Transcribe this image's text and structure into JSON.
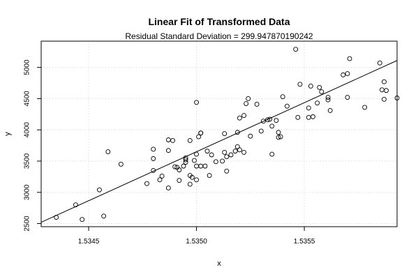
{
  "chart_data": {
    "type": "scatter",
    "title": "Linear Fit of Transformed Data",
    "subtitle": "Residual Standard Deviation =  299.947870190242",
    "xlabel": "x",
    "ylabel": "y",
    "xlim": [
      1.53428,
      1.53593
    ],
    "ylim": [
      2450,
      5420
    ],
    "grid": true,
    "xticks": [
      1.5345,
      1.535,
      1.5355
    ],
    "xtick_labels": [
      "1.5345",
      "1.5350",
      "1.5355"
    ],
    "yticks": [
      2500,
      3000,
      3500,
      4000,
      4500,
      5000
    ],
    "ytick_labels": [
      "2500",
      "3000",
      "3500",
      "4000",
      "4500",
      "5000"
    ],
    "fit_line": {
      "x": [
        1.53428,
        1.53593
      ],
      "y": [
        2520,
        5110
      ]
    },
    "points": [
      {
        "x": 1.53435,
        "y": 2600
      },
      {
        "x": 1.53444,
        "y": 2800
      },
      {
        "x": 1.53447,
        "y": 2565
      },
      {
        "x": 1.53455,
        "y": 3040
      },
      {
        "x": 1.53457,
        "y": 2620
      },
      {
        "x": 1.53459,
        "y": 3650
      },
      {
        "x": 1.53465,
        "y": 3450
      },
      {
        "x": 1.53477,
        "y": 3140
      },
      {
        "x": 1.5348,
        "y": 3350
      },
      {
        "x": 1.5348,
        "y": 3540
      },
      {
        "x": 1.5348,
        "y": 3690
      },
      {
        "x": 1.53483,
        "y": 3200
      },
      {
        "x": 1.53484,
        "y": 3260
      },
      {
        "x": 1.53487,
        "y": 3840
      },
      {
        "x": 1.53487,
        "y": 3670
      },
      {
        "x": 1.53487,
        "y": 3070
      },
      {
        "x": 1.53489,
        "y": 3830
      },
      {
        "x": 1.5349,
        "y": 3410
      },
      {
        "x": 1.53491,
        "y": 3400
      },
      {
        "x": 1.53492,
        "y": 3190
      },
      {
        "x": 1.53492,
        "y": 3360
      },
      {
        "x": 1.53494,
        "y": 3420
      },
      {
        "x": 1.53495,
        "y": 3480
      },
      {
        "x": 1.53495,
        "y": 3520
      },
      {
        "x": 1.53495,
        "y": 3550
      },
      {
        "x": 1.53497,
        "y": 3130
      },
      {
        "x": 1.53497,
        "y": 3830
      },
      {
        "x": 1.53497,
        "y": 3270
      },
      {
        "x": 1.53498,
        "y": 3240
      },
      {
        "x": 1.53499,
        "y": 3510
      },
      {
        "x": 1.535,
        "y": 4440
      },
      {
        "x": 1.535,
        "y": 3610
      },
      {
        "x": 1.535,
        "y": 3420
      },
      {
        "x": 1.535,
        "y": 3200
      },
      {
        "x": 1.53501,
        "y": 3890
      },
      {
        "x": 1.53502,
        "y": 3950
      },
      {
        "x": 1.53502,
        "y": 3950
      },
      {
        "x": 1.53502,
        "y": 3420
      },
      {
        "x": 1.53504,
        "y": 3420
      },
      {
        "x": 1.53505,
        "y": 3660
      },
      {
        "x": 1.53506,
        "y": 3270
      },
      {
        "x": 1.53507,
        "y": 3600
      },
      {
        "x": 1.53509,
        "y": 3490
      },
      {
        "x": 1.53512,
        "y": 3500
      },
      {
        "x": 1.53513,
        "y": 3940
      },
      {
        "x": 1.53513,
        "y": 3640
      },
      {
        "x": 1.53514,
        "y": 3340
      },
      {
        "x": 1.53514,
        "y": 3570
      },
      {
        "x": 1.53516,
        "y": 3600
      },
      {
        "x": 1.53518,
        "y": 3660
      },
      {
        "x": 1.53519,
        "y": 3730
      },
      {
        "x": 1.53519,
        "y": 3960
      },
      {
        "x": 1.5352,
        "y": 4190
      },
      {
        "x": 1.5352,
        "y": 3680
      },
      {
        "x": 1.53522,
        "y": 3640
      },
      {
        "x": 1.53522,
        "y": 4230
      },
      {
        "x": 1.53523,
        "y": 4420
      },
      {
        "x": 1.53524,
        "y": 4500
      },
      {
        "x": 1.53525,
        "y": 3900
      },
      {
        "x": 1.53528,
        "y": 4410
      },
      {
        "x": 1.5353,
        "y": 3980
      },
      {
        "x": 1.53531,
        "y": 4140
      },
      {
        "x": 1.53533,
        "y": 4160
      },
      {
        "x": 1.53534,
        "y": 4170
      },
      {
        "x": 1.53535,
        "y": 4060
      },
      {
        "x": 1.53535,
        "y": 3610
      },
      {
        "x": 1.53537,
        "y": 4150
      },
      {
        "x": 1.53538,
        "y": 3960
      },
      {
        "x": 1.53538,
        "y": 3880
      },
      {
        "x": 1.53539,
        "y": 3890
      },
      {
        "x": 1.5354,
        "y": 4530
      },
      {
        "x": 1.53542,
        "y": 4380
      },
      {
        "x": 1.53546,
        "y": 5290
      },
      {
        "x": 1.53547,
        "y": 4200
      },
      {
        "x": 1.53548,
        "y": 4730
      },
      {
        "x": 1.53552,
        "y": 4200
      },
      {
        "x": 1.53552,
        "y": 4350
      },
      {
        "x": 1.53553,
        "y": 4700
      },
      {
        "x": 1.53554,
        "y": 4210
      },
      {
        "x": 1.53556,
        "y": 4430
      },
      {
        "x": 1.53557,
        "y": 4680
      },
      {
        "x": 1.53558,
        "y": 4610
      },
      {
        "x": 1.53561,
        "y": 4520
      },
      {
        "x": 1.53561,
        "y": 4480
      },
      {
        "x": 1.53562,
        "y": 4310
      },
      {
        "x": 1.53568,
        "y": 4880
      },
      {
        "x": 1.5357,
        "y": 4520
      },
      {
        "x": 1.5357,
        "y": 4900
      },
      {
        "x": 1.53571,
        "y": 5140
      },
      {
        "x": 1.53578,
        "y": 4360
      },
      {
        "x": 1.53585,
        "y": 5070
      },
      {
        "x": 1.53586,
        "y": 4640
      },
      {
        "x": 1.53587,
        "y": 4770
      },
      {
        "x": 1.53587,
        "y": 4490
      },
      {
        "x": 1.53593,
        "y": 4510
      },
      {
        "x": 1.53588,
        "y": 4630
      }
    ]
  }
}
